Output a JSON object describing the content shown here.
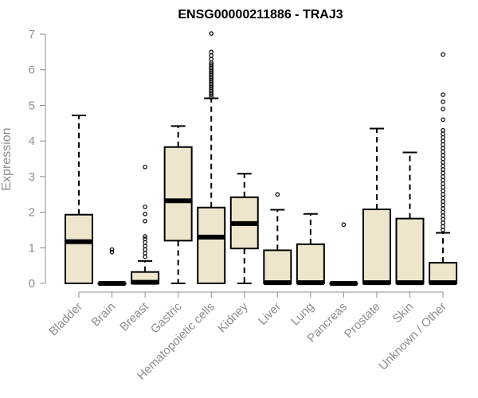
{
  "chart_data": {
    "type": "boxplot",
    "title": "ENSG00000211886 - TRAJ3",
    "xlabel": "",
    "ylabel": "Expression",
    "ylim": [
      0,
      7
    ],
    "yticks": [
      0,
      1,
      2,
      3,
      4,
      5,
      6,
      7
    ],
    "grid": false,
    "legend": "none",
    "box_fill": "#ede6cd",
    "outline_color": "#000000",
    "axis_color": "#8c8c8c",
    "categories": [
      "Bladder",
      "Brain",
      "Breast",
      "Gastric",
      "Hematopoietic cells",
      "Kidney",
      "Liver",
      "Lung",
      "Pancreas",
      "Prostate",
      "Skin",
      "Unknown / Other"
    ],
    "boxes": [
      {
        "category": "Bladder",
        "whisker_low": 0,
        "q1": 0,
        "median": 1.17,
        "q3": 1.93,
        "whisker_high": 4.72,
        "outliers": []
      },
      {
        "category": "Brain",
        "whisker_low": 0,
        "q1": 0,
        "median": 0,
        "q3": 0,
        "whisker_high": 0,
        "outliers": [
          0.88,
          0.95
        ]
      },
      {
        "category": "Breast",
        "whisker_low": 0,
        "q1": 0,
        "median": 0.03,
        "q3": 0.32,
        "whisker_high": 0.63,
        "outliers": [
          0.75,
          0.85,
          0.95,
          1.05,
          1.15,
          1.25,
          1.32,
          1.75,
          1.95,
          2.15,
          3.27
        ]
      },
      {
        "category": "Gastric",
        "whisker_low": 0,
        "q1": 1.2,
        "median": 2.32,
        "q3": 3.83,
        "whisker_high": 4.42,
        "outliers": []
      },
      {
        "category": "Hematopoietic cells",
        "whisker_low": 0,
        "q1": 0,
        "median": 1.3,
        "q3": 2.13,
        "whisker_high": 5.2,
        "outliers": [
          5.25,
          5.3,
          5.35,
          5.4,
          5.45,
          5.5,
          5.55,
          5.6,
          5.65,
          5.7,
          5.75,
          5.8,
          5.85,
          5.9,
          5.95,
          6.0,
          6.05,
          6.1,
          6.15,
          6.2,
          6.3,
          6.4,
          6.5,
          7.02
        ]
      },
      {
        "category": "Kidney",
        "whisker_low": 0,
        "q1": 0.98,
        "median": 1.68,
        "q3": 2.42,
        "whisker_high": 3.08,
        "outliers": []
      },
      {
        "category": "Liver",
        "whisker_low": 0,
        "q1": 0,
        "median": 0.02,
        "q3": 0.93,
        "whisker_high": 2.07,
        "outliers": [
          2.5
        ]
      },
      {
        "category": "Lung",
        "whisker_low": 0,
        "q1": 0,
        "median": 0.02,
        "q3": 1.1,
        "whisker_high": 1.95,
        "outliers": []
      },
      {
        "category": "Pancreas",
        "whisker_low": 0,
        "q1": 0,
        "median": 0,
        "q3": 0,
        "whisker_high": 0,
        "outliers": [
          1.65
        ]
      },
      {
        "category": "Prostate",
        "whisker_low": 0,
        "q1": 0,
        "median": 0.02,
        "q3": 2.08,
        "whisker_high": 4.35,
        "outliers": []
      },
      {
        "category": "Skin",
        "whisker_low": 0,
        "q1": 0,
        "median": 0.02,
        "q3": 1.82,
        "whisker_high": 3.68,
        "outliers": []
      },
      {
        "category": "Unknown / Other",
        "whisker_low": 0,
        "q1": 0,
        "median": 0.02,
        "q3": 0.58,
        "whisker_high": 1.42,
        "outliers": [
          1.5,
          1.6,
          1.7,
          1.8,
          1.9,
          2.0,
          2.1,
          2.2,
          2.3,
          2.4,
          2.5,
          2.6,
          2.7,
          2.8,
          2.9,
          3.0,
          3.1,
          3.2,
          3.3,
          3.4,
          3.5,
          3.6,
          3.7,
          3.8,
          3.9,
          4.0,
          4.1,
          4.2,
          4.3,
          4.6,
          4.9,
          5.1,
          5.3,
          6.43
        ]
      }
    ]
  }
}
